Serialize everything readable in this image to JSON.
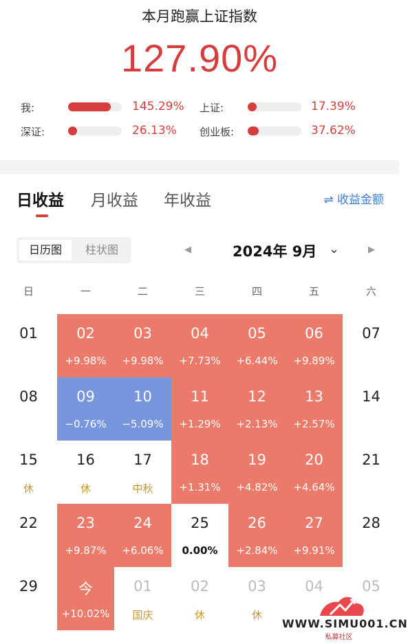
{
  "header": {
    "title": "本月跑赢上证指数",
    "value": "127.90%"
  },
  "comparisons": [
    {
      "label": "我:",
      "value": "145.29%",
      "fill": 0.8
    },
    {
      "label": "上证:",
      "value": "17.39%",
      "fill": 0.1
    },
    {
      "label": "深证:",
      "value": "26.13%",
      "fill": 0.12
    },
    {
      "label": "创业板:",
      "value": "37.62%",
      "fill": 0.2
    }
  ],
  "tabs": [
    "日收益",
    "月收益",
    "年收益"
  ],
  "toggle_amount": "⇌ 收益金额",
  "view_switch": {
    "calendar": "日历图",
    "bar": "柱状图"
  },
  "month_nav": {
    "prev": "◀",
    "label": "2024年 9月",
    "chevron": "⌄",
    "next": "▶"
  },
  "weekdays": [
    "日",
    "一",
    "二",
    "三",
    "四",
    "五",
    "六"
  ],
  "calendar": [
    [
      {
        "day": "01",
        "sub": "",
        "state": "none"
      },
      {
        "day": "02",
        "sub": "+9.98%",
        "state": "up"
      },
      {
        "day": "03",
        "sub": "+9.98%",
        "state": "up"
      },
      {
        "day": "04",
        "sub": "+7.73%",
        "state": "up"
      },
      {
        "day": "05",
        "sub": "+6.44%",
        "state": "up"
      },
      {
        "day": "06",
        "sub": "+9.89%",
        "state": "up"
      },
      {
        "day": "07",
        "sub": "",
        "state": "none"
      }
    ],
    [
      {
        "day": "08",
        "sub": "",
        "state": "none"
      },
      {
        "day": "09",
        "sub": "−0.76%",
        "state": "down"
      },
      {
        "day": "10",
        "sub": "−5.09%",
        "state": "down"
      },
      {
        "day": "11",
        "sub": "+1.29%",
        "state": "up"
      },
      {
        "day": "12",
        "sub": "+2.13%",
        "state": "up"
      },
      {
        "day": "13",
        "sub": "+2.57%",
        "state": "up"
      },
      {
        "day": "14",
        "sub": "",
        "state": "none"
      }
    ],
    [
      {
        "day": "15",
        "sub": "休",
        "state": "holiday"
      },
      {
        "day": "16",
        "sub": "休",
        "state": "holiday"
      },
      {
        "day": "17",
        "sub": "中秋",
        "state": "holiday"
      },
      {
        "day": "18",
        "sub": "+1.31%",
        "state": "up"
      },
      {
        "day": "19",
        "sub": "+4.82%",
        "state": "up"
      },
      {
        "day": "20",
        "sub": "+4.64%",
        "state": "up"
      },
      {
        "day": "21",
        "sub": "",
        "state": "none"
      }
    ],
    [
      {
        "day": "22",
        "sub": "",
        "state": "none"
      },
      {
        "day": "23",
        "sub": "+9.87%",
        "state": "up"
      },
      {
        "day": "24",
        "sub": "+6.06%",
        "state": "up"
      },
      {
        "day": "25",
        "sub": "0.00%",
        "state": "flat"
      },
      {
        "day": "26",
        "sub": "+2.84%",
        "state": "up"
      },
      {
        "day": "27",
        "sub": "+9.91%",
        "state": "up"
      },
      {
        "day": "28",
        "sub": "",
        "state": "none"
      }
    ],
    [
      {
        "day": "29",
        "sub": "",
        "state": "none"
      },
      {
        "day": "今",
        "sub": "+10.02%",
        "state": "up"
      },
      {
        "day": "01",
        "sub": "国庆",
        "state": "next-holiday"
      },
      {
        "day": "02",
        "sub": "休",
        "state": "next-holiday"
      },
      {
        "day": "03",
        "sub": "休",
        "state": "next-holiday"
      },
      {
        "day": "04",
        "sub": "",
        "state": "next"
      },
      {
        "day": "05",
        "sub": "",
        "state": "next"
      }
    ]
  ],
  "colors": {
    "accent_red": "#d63d3d",
    "up_cell": "#ec7a6a",
    "down_cell": "#7896dd",
    "holiday_text": "#c9962e",
    "link_blue": "#3b7fd6"
  },
  "watermark": {
    "text": "WWW.SIMU001.CN",
    "sub": "私募社区"
  }
}
